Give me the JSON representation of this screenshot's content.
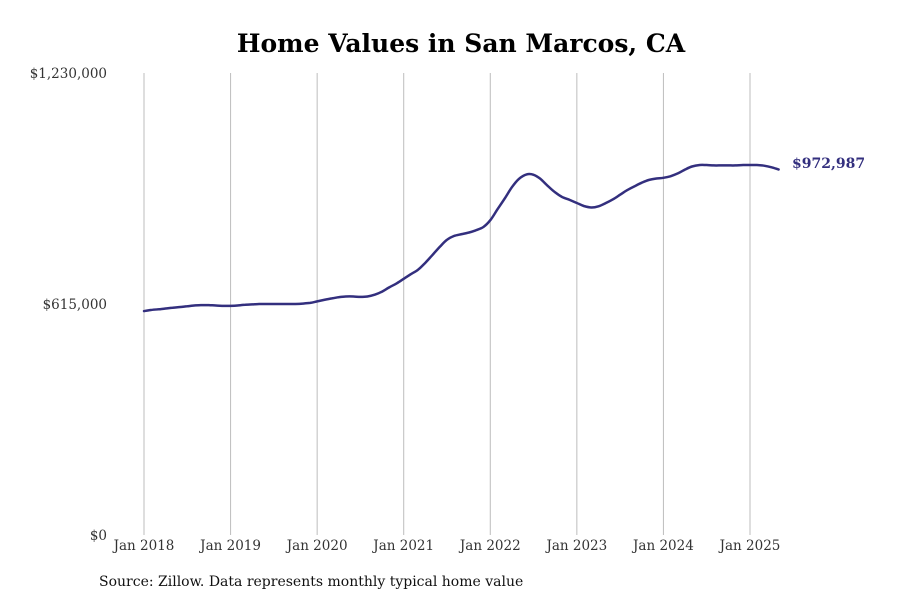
{
  "chart_data": {
    "type": "line",
    "title": "Home Values in San Marcos, CA",
    "xlabel": "",
    "ylabel": "",
    "ylim": [
      0,
      1230000
    ],
    "y_ticks": [
      {
        "value": 0,
        "label": "$0"
      },
      {
        "value": 615000,
        "label": "$615,000"
      },
      {
        "value": 1230000,
        "label": "$1,230,000"
      }
    ],
    "x_range": [
      2018.0,
      2025.5
    ],
    "x_ticks": [
      {
        "value": 2018,
        "label": "Jan 2018"
      },
      {
        "value": 2019,
        "label": "Jan 2019"
      },
      {
        "value": 2020,
        "label": "Jan 2020"
      },
      {
        "value": 2021,
        "label": "Jan 2021"
      },
      {
        "value": 2022,
        "label": "Jan 2022"
      },
      {
        "value": 2023,
        "label": "Jan 2023"
      },
      {
        "value": 2024,
        "label": "Jan 2024"
      },
      {
        "value": 2025,
        "label": "Jan 2025"
      }
    ],
    "grid": "vertical",
    "line_color": "#332f7e",
    "end_label": "$972,987",
    "series": [
      {
        "x": [
          2018.0,
          2018.08,
          2018.17,
          2018.25,
          2018.33,
          2018.42,
          2018.5,
          2018.58,
          2018.67,
          2018.75,
          2018.83,
          2018.92,
          2019.0,
          2019.08,
          2019.17,
          2019.25,
          2019.33,
          2019.42,
          2019.5,
          2019.58,
          2019.67,
          2019.75,
          2019.83,
          2019.92,
          2020.0,
          2020.08,
          2020.17,
          2020.25,
          2020.33,
          2020.42,
          2020.5,
          2020.58,
          2020.67,
          2020.75,
          2020.83,
          2020.92,
          2021.0,
          2021.08,
          2021.17,
          2021.25,
          2021.33,
          2021.42,
          2021.5,
          2021.58,
          2021.67,
          2021.75,
          2021.83,
          2021.92,
          2022.0,
          2022.08,
          2022.17,
          2022.25,
          2022.33,
          2022.42,
          2022.5,
          2022.58,
          2022.67,
          2022.75,
          2022.83,
          2022.92,
          2023.0,
          2023.08,
          2023.17,
          2023.25,
          2023.33,
          2023.42,
          2023.5,
          2023.58,
          2023.67,
          2023.75,
          2023.83,
          2023.92,
          2024.0,
          2024.08,
          2024.17,
          2024.25,
          2024.33,
          2024.42,
          2024.5,
          2024.58,
          2024.67,
          2024.75,
          2024.83,
          2024.92,
          2025.0,
          2025.08,
          2025.17,
          2025.25,
          2025.33
        ],
        "values": [
          596000,
          599000,
          601000,
          603000,
          605000,
          607000,
          609000,
          611000,
          612000,
          612000,
          611000,
          610000,
          610000,
          611000,
          613000,
          614000,
          615000,
          615000,
          615000,
          615000,
          615000,
          615000,
          616000,
          618000,
          622000,
          626000,
          630000,
          633000,
          635000,
          635000,
          634000,
          635000,
          640000,
          648000,
          659000,
          670000,
          682000,
          694000,
          707000,
          725000,
          745000,
          768000,
          786000,
          796000,
          801000,
          805000,
          811000,
          820000,
          838000,
          866000,
          897000,
          926000,
          948000,
          960000,
          959000,
          948000,
          928000,
          912000,
          900000,
          892000,
          884000,
          876000,
          872000,
          875000,
          883000,
          894000,
          906000,
          918000,
          929000,
          938000,
          945000,
          949000,
          951000,
          955000,
          963000,
          973000,
          981000,
          985000,
          985000,
          984000,
          984000,
          984000,
          984000,
          985000,
          985000,
          985000,
          983000,
          979000,
          973000
        ]
      }
    ]
  },
  "source": "Source: Zillow. Data represents monthly typical home value"
}
